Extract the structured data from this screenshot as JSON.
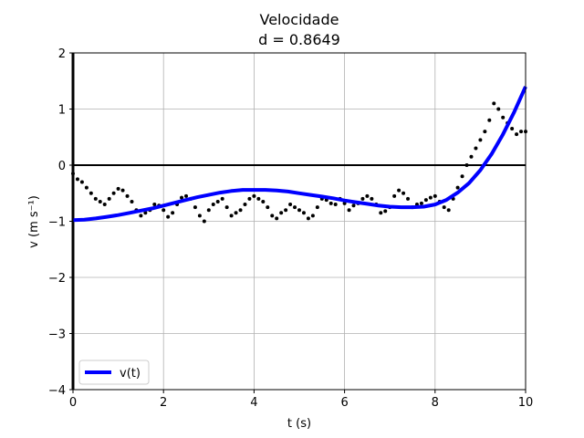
{
  "chart_data": {
    "type": "scatter",
    "title": "Velocidade",
    "subtitle": "d = 0.8649",
    "xlabel": "t (s)",
    "ylabel": "v (m s⁻¹)",
    "xlim": [
      0,
      10
    ],
    "ylim": [
      -4,
      2
    ],
    "xticks": [
      0,
      2,
      4,
      6,
      8,
      10
    ],
    "yticks": [
      -4,
      -3,
      -2,
      -1,
      0,
      1,
      2
    ],
    "xtick_labels": [
      "0",
      "2",
      "4",
      "6",
      "8",
      "10"
    ],
    "ytick_labels": [
      "−4",
      "−3",
      "−2",
      "−1",
      "0",
      "1",
      "2"
    ],
    "grid": true,
    "legend_position": "lower-left",
    "series": [
      {
        "name": "v(t)",
        "kind": "line",
        "color": "#0000ff",
        "x": [
          0,
          0.25,
          0.5,
          0.75,
          1.0,
          1.25,
          1.5,
          1.75,
          2.0,
          2.25,
          2.5,
          2.75,
          3.0,
          3.25,
          3.5,
          3.75,
          4.0,
          4.25,
          4.5,
          4.75,
          5.0,
          5.25,
          5.5,
          5.75,
          6.0,
          6.25,
          6.5,
          6.75,
          7.0,
          7.25,
          7.5,
          7.75,
          8.0,
          8.25,
          8.5,
          8.75,
          9.0,
          9.25,
          9.5,
          9.75,
          10.0
        ],
        "y": [
          -0.98,
          -0.97,
          -0.95,
          -0.92,
          -0.89,
          -0.85,
          -0.81,
          -0.77,
          -0.72,
          -0.67,
          -0.62,
          -0.57,
          -0.53,
          -0.49,
          -0.46,
          -0.44,
          -0.44,
          -0.44,
          -0.45,
          -0.47,
          -0.5,
          -0.53,
          -0.56,
          -0.59,
          -0.63,
          -0.66,
          -0.69,
          -0.72,
          -0.74,
          -0.75,
          -0.75,
          -0.74,
          -0.7,
          -0.62,
          -0.49,
          -0.32,
          -0.09,
          0.2,
          0.55,
          0.95,
          1.4
        ]
      },
      {
        "name": "",
        "kind": "scatter",
        "color": "#000000",
        "x": [
          0.0,
          0.1,
          0.2,
          0.3,
          0.4,
          0.5,
          0.6,
          0.7,
          0.8,
          0.9,
          1.0,
          1.1,
          1.2,
          1.3,
          1.4,
          1.5,
          1.6,
          1.7,
          1.8,
          1.9,
          2.0,
          2.1,
          2.2,
          2.3,
          2.4,
          2.5,
          2.6,
          2.7,
          2.8,
          2.9,
          3.0,
          3.1,
          3.2,
          3.3,
          3.4,
          3.5,
          3.6,
          3.7,
          3.8,
          3.9,
          4.0,
          4.1,
          4.2,
          4.3,
          4.4,
          4.5,
          4.6,
          4.7,
          4.8,
          4.9,
          5.0,
          5.1,
          5.2,
          5.3,
          5.4,
          5.5,
          5.6,
          5.7,
          5.8,
          5.9,
          6.0,
          6.1,
          6.2,
          6.3,
          6.4,
          6.5,
          6.6,
          6.7,
          6.8,
          6.9,
          7.0,
          7.1,
          7.2,
          7.3,
          7.4,
          7.5,
          7.6,
          7.7,
          7.8,
          7.9,
          8.0,
          8.1,
          8.2,
          8.3,
          8.4,
          8.5,
          8.6,
          8.7,
          8.8,
          8.9,
          9.0,
          9.1,
          9.2,
          9.3,
          9.4,
          9.5,
          9.6,
          9.7,
          9.8,
          9.9,
          10.0
        ],
        "y": [
          -0.15,
          -0.25,
          -0.3,
          -0.4,
          -0.5,
          -0.6,
          -0.65,
          -0.7,
          -0.6,
          -0.5,
          -0.42,
          -0.45,
          -0.55,
          -0.65,
          -0.8,
          -0.9,
          -0.85,
          -0.8,
          -0.7,
          -0.72,
          -0.8,
          -0.92,
          -0.85,
          -0.7,
          -0.58,
          -0.55,
          -0.6,
          -0.75,
          -0.9,
          -1.0,
          -0.8,
          -0.7,
          -0.65,
          -0.6,
          -0.75,
          -0.9,
          -0.85,
          -0.8,
          -0.7,
          -0.6,
          -0.55,
          -0.6,
          -0.65,
          -0.75,
          -0.9,
          -0.95,
          -0.85,
          -0.8,
          -0.7,
          -0.75,
          -0.8,
          -0.85,
          -0.95,
          -0.9,
          -0.75,
          -0.6,
          -0.62,
          -0.68,
          -0.7,
          -0.6,
          -0.68,
          -0.8,
          -0.72,
          -0.68,
          -0.6,
          -0.55,
          -0.6,
          -0.7,
          -0.85,
          -0.82,
          -0.75,
          -0.55,
          -0.45,
          -0.5,
          -0.6,
          -0.75,
          -0.7,
          -0.68,
          -0.62,
          -0.58,
          -0.55,
          -0.65,
          -0.75,
          -0.8,
          -0.6,
          -0.4,
          -0.2,
          0.0,
          0.15,
          0.3,
          0.45,
          0.6,
          0.8,
          1.1,
          1.0,
          0.85,
          0.75,
          0.65,
          0.55,
          0.6,
          0.6
        ]
      }
    ]
  }
}
